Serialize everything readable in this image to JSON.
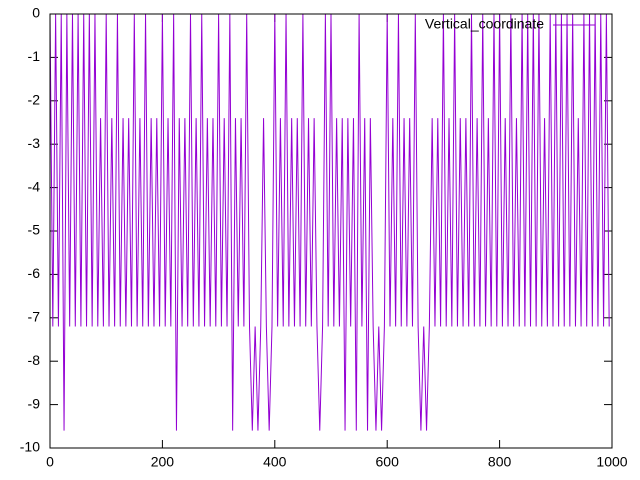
{
  "chart_data": {
    "type": "line",
    "legend": "top right",
    "grid": false,
    "xlim": [
      0,
      1000
    ],
    "xticks": [
      0,
      200,
      400,
      600,
      800,
      1000
    ],
    "ylim": [
      -10,
      0
    ],
    "yticks": [
      0,
      -1,
      -2,
      -3,
      -4,
      -5,
      -6,
      -7,
      -8,
      -9,
      -10
    ],
    "x": [
      0,
      5,
      10,
      15,
      20,
      25,
      30,
      35,
      40,
      45,
      50,
      55,
      60,
      65,
      70,
      75,
      80,
      85,
      90,
      95,
      100,
      105,
      110,
      115,
      120,
      125,
      130,
      135,
      140,
      145,
      150,
      155,
      160,
      165,
      170,
      175,
      180,
      185,
      190,
      195,
      200,
      205,
      210,
      215,
      220,
      225,
      230,
      235,
      240,
      245,
      250,
      255,
      260,
      265,
      270,
      275,
      280,
      285,
      290,
      295,
      300,
      305,
      310,
      315,
      320,
      325,
      330,
      335,
      340,
      345,
      350,
      355,
      360,
      365,
      370,
      375,
      380,
      385,
      390,
      395,
      400,
      405,
      410,
      415,
      420,
      425,
      430,
      435,
      440,
      445,
      450,
      455,
      460,
      465,
      470,
      475,
      480,
      485,
      490,
      495,
      500,
      505,
      510,
      515,
      520,
      525,
      530,
      535,
      540,
      545,
      550,
      555,
      560,
      565,
      570,
      575,
      580,
      585,
      590,
      595,
      600,
      605,
      610,
      615,
      620,
      625,
      630,
      635,
      640,
      645,
      650,
      655,
      660,
      665,
      670,
      675,
      680,
      685,
      690,
      695,
      700,
      705,
      710,
      715,
      720,
      725,
      730,
      735,
      740,
      745,
      750,
      755,
      760,
      765,
      770,
      775,
      780,
      785,
      790,
      795,
      800,
      805,
      810,
      815,
      820,
      825,
      830,
      835,
      840,
      845,
      850,
      855,
      860,
      865,
      870,
      875,
      880,
      885,
      890,
      895,
      900,
      905,
      910,
      915,
      920,
      925,
      930,
      935,
      940,
      945,
      950,
      955,
      960,
      965,
      970,
      975,
      980,
      985,
      990,
      995
    ],
    "series": [
      {
        "name": "Vertical_coordinate",
        "color": "#9400d3",
        "values": [
          0,
          -7.2,
          0,
          -7.2,
          0,
          -9.6,
          0,
          -7.2,
          0,
          -7.2,
          0,
          -7.2,
          0,
          -7.2,
          0,
          -7.2,
          0,
          -7.2,
          -2.4,
          -7.2,
          0,
          -7.2,
          -2.4,
          -7.2,
          0,
          -7.2,
          -2.4,
          -7.2,
          -2.4,
          -7.2,
          0,
          -7.2,
          -2.4,
          -7.2,
          0,
          -7.2,
          -2.4,
          -7.2,
          -2.4,
          -7.2,
          0,
          -7.2,
          -2.4,
          -7.2,
          0,
          -9.6,
          -2.4,
          -7.2,
          -2.4,
          -7.2,
          0,
          -7.2,
          -2.4,
          -7.2,
          0,
          -7.2,
          -2.4,
          -7.2,
          -2.4,
          -7.2,
          0,
          -7.2,
          -2.4,
          -7.2,
          0,
          -9.6,
          -2.4,
          -7.2,
          -2.4,
          -7.2,
          0,
          -7.2,
          -9.6,
          -7.2,
          -9.6,
          -7.2,
          -2.4,
          -7.2,
          -9.6,
          -7.2,
          0,
          -7.2,
          -2.4,
          -7.2,
          0,
          -7.2,
          -2.4,
          -7.2,
          -2.4,
          -7.2,
          0,
          -7.2,
          -2.4,
          -7.2,
          -2.4,
          -7.2,
          -9.6,
          -7.2,
          0,
          -7.2,
          0,
          -7.2,
          -2.4,
          -7.2,
          -2.4,
          -9.6,
          -2.4,
          -7.2,
          -2.4,
          -9.6,
          0,
          -7.2,
          -2.4,
          -9.6,
          -2.4,
          -7.2,
          -9.6,
          -7.2,
          -9.6,
          -7.2,
          0,
          -7.2,
          -2.4,
          -7.2,
          0,
          -7.2,
          -2.4,
          -7.2,
          -2.4,
          -7.2,
          0,
          -7.2,
          -9.6,
          -7.2,
          -9.6,
          -7.2,
          -2.4,
          -7.2,
          -2.4,
          -7.2,
          0,
          -7.2,
          -2.4,
          -7.2,
          0,
          -7.2,
          -2.4,
          -7.2,
          -2.4,
          -7.2,
          0,
          -7.2,
          -2.4,
          -7.2,
          0,
          -7.2,
          -2.4,
          -7.2,
          0,
          -7.2,
          0,
          -7.2,
          -2.4,
          -7.2,
          0,
          -7.2,
          -2.4,
          -7.2,
          0,
          -7.2,
          0,
          -7.2,
          0,
          -7.2,
          0,
          -7.2,
          -2.4,
          -7.2,
          0,
          -7.2,
          0,
          -7.2,
          0,
          -7.2,
          0,
          -7.2,
          0,
          -7.2,
          -2.4,
          -7.2,
          0,
          -7.2,
          0,
          -7.2,
          0,
          -7.2,
          0,
          -7.2,
          0,
          -7.2
        ]
      }
    ]
  }
}
